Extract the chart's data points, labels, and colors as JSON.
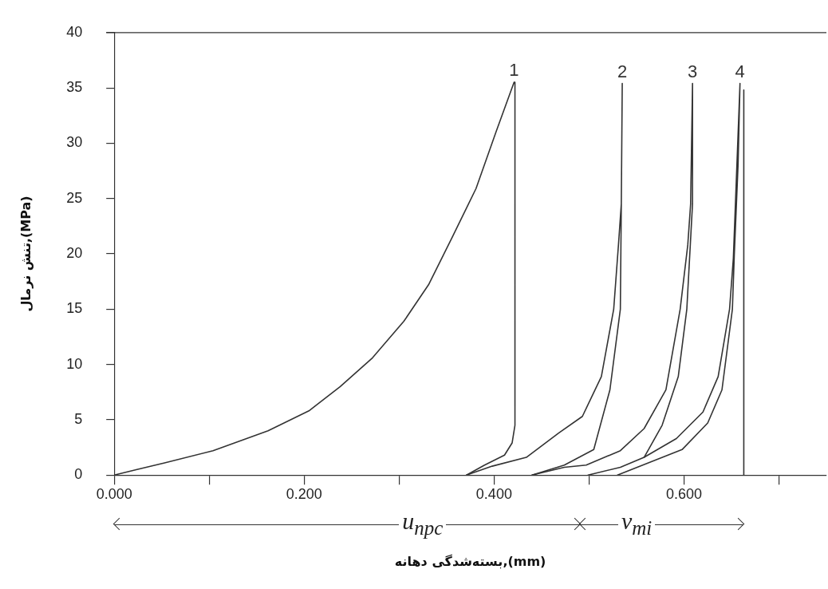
{
  "chart_data": {
    "type": "line",
    "xlabel": "بسته‌شدگی دهانه,(mm)",
    "ylabel": "تنش نرمال,(MPa)",
    "xlim": [
      0,
      0.75
    ],
    "ylim": [
      0,
      40
    ],
    "xticks": [
      {
        "value": 0,
        "label": "0.000"
      },
      {
        "value": 0.1,
        "label": null
      },
      {
        "value": 0.2,
        "label": "0.200"
      },
      {
        "value": 0.3,
        "label": null
      },
      {
        "value": 0.4,
        "label": "0.400"
      },
      {
        "value": 0.5,
        "label": null
      },
      {
        "value": 0.6,
        "label": "0.600"
      },
      {
        "value": 0.7,
        "label": null
      }
    ],
    "yticks": [
      0,
      5,
      10,
      15,
      20,
      25,
      30,
      35,
      40
    ],
    "grid": false,
    "legend": false,
    "marker": "none",
    "line_style": "solid",
    "series": [
      {
        "name": "1",
        "color": "#333333",
        "x": [
          0,
          0.024,
          0.053,
          0.104,
          0.162,
          0.205,
          0.238,
          0.272,
          0.305,
          0.331,
          0.356,
          0.381,
          0.402,
          0.421,
          0.422,
          0.422,
          0.419,
          0.411,
          0.39,
          0.371
        ],
        "values": [
          0,
          0.5,
          1.1,
          2.2,
          4,
          5.8,
          8,
          10.6,
          13.9,
          17.2,
          21.5,
          25.9,
          31,
          35.5,
          35.5,
          4.5,
          2.9,
          1.8,
          0.9,
          0
        ]
      },
      {
        "name": "2",
        "color": "#333333",
        "x": [
          0.371,
          0.398,
          0.434,
          0.468,
          0.493,
          0.513,
          0.526,
          0.531,
          0.534,
          0.535,
          0.534,
          0.533,
          0.522,
          0.505,
          0.474,
          0.44
        ],
        "values": [
          0,
          0.8,
          1.6,
          3.8,
          5.3,
          8.9,
          15,
          20.8,
          24.5,
          35.4,
          24.5,
          15,
          7.7,
          2.3,
          0.9,
          0
        ]
      },
      {
        "name": "3",
        "color": "#333333",
        "x": [
          0.44,
          0.474,
          0.497,
          0.533,
          0.558,
          0.581,
          0.596,
          0.604,
          0.607,
          0.609,
          0.609,
          0.603,
          0.594,
          0.577,
          0.558,
          0.533,
          0.499
        ],
        "values": [
          0,
          0.7,
          0.9,
          2.2,
          4.2,
          7.7,
          15,
          20.8,
          24.5,
          35.4,
          24.5,
          15,
          8.9,
          4.5,
          1.6,
          0.7,
          0
        ]
      },
      {
        "name": "4",
        "color": "#333333",
        "x": [
          0.53,
          0.598,
          0.625,
          0.64,
          0.651,
          0.653,
          0.657,
          0.659,
          0.652,
          0.648,
          0.636,
          0.62,
          0.592,
          0.558
        ],
        "values": [
          0,
          2.3,
          4.7,
          7.7,
          15,
          19.9,
          28.1,
          35.4,
          19.6,
          15,
          8.9,
          5.7,
          3.3,
          1.6
        ]
      },
      {
        "color": "#333333",
        "x": [
          0.663,
          0.663
        ],
        "values": [
          34.8,
          0
        ]
      }
    ],
    "annotations": [
      "u$_{npc}$",
      "v$_{mi}$"
    ]
  }
}
